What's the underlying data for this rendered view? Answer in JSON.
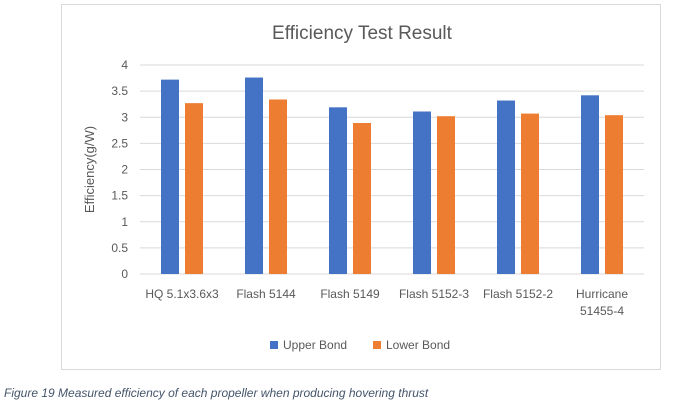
{
  "caption": "Figure 19 Measured efficiency of each propeller when producing hovering thrust",
  "colors": {
    "upper": "#4472c4",
    "lower": "#ed7d31",
    "grid": "#d9d9d9",
    "text": "#595959"
  },
  "chart_data": {
    "type": "bar",
    "title": "Efficiency Test Result",
    "xlabel": "",
    "ylabel": "Efficiency(g/W)",
    "ylim": [
      0,
      4
    ],
    "yticks": [
      "0",
      "0.5",
      "1",
      "1.5",
      "2",
      "2.5",
      "3",
      "3.5",
      "4"
    ],
    "grid": true,
    "legend_position": "bottom",
    "categories": [
      [
        "HQ 5.1x3.6x3"
      ],
      [
        "Flash 5144"
      ],
      [
        "Flash 5149"
      ],
      [
        "Flash 5152-3"
      ],
      [
        "Flash 5152-2"
      ],
      [
        "Hurricane",
        "51455-4"
      ]
    ],
    "series": [
      {
        "name": "Upper Bond",
        "values": [
          3.72,
          3.76,
          3.19,
          3.11,
          3.32,
          3.42
        ]
      },
      {
        "name": "Lower Bond",
        "values": [
          3.27,
          3.34,
          2.89,
          3.02,
          3.07,
          3.04
        ]
      }
    ]
  }
}
